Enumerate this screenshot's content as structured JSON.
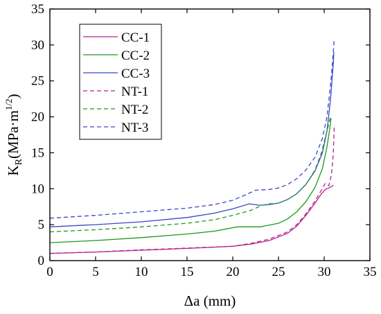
{
  "chart_data": {
    "type": "line",
    "xlabel": "Δa (mm)",
    "ylabel": {
      "main": "K",
      "sub": "R",
      "units": "(MPa·m",
      "sup": "1/2",
      "close": ")"
    },
    "xlim": [
      0,
      35
    ],
    "ylim": [
      0,
      35
    ],
    "xticks": [
      0,
      5,
      10,
      15,
      20,
      25,
      30,
      35
    ],
    "yticks": [
      0,
      5,
      10,
      15,
      20,
      25,
      30,
      35
    ],
    "grid": false,
    "legend_placement": "top-left",
    "series": [
      {
        "name": "CC-1",
        "color": "#b0238f",
        "dash": "solid",
        "points": [
          [
            0,
            1.0
          ],
          [
            5,
            1.2
          ],
          [
            10,
            1.45
          ],
          [
            15,
            1.7
          ],
          [
            20,
            2.0
          ],
          [
            22,
            2.3
          ],
          [
            24,
            2.8
          ],
          [
            26,
            3.8
          ],
          [
            27,
            4.8
          ],
          [
            28,
            6.3
          ],
          [
            29,
            8.0
          ],
          [
            29.7,
            9.3
          ],
          [
            30.2,
            10.0
          ],
          [
            30.5,
            10.1
          ],
          [
            30.8,
            10.3
          ],
          [
            31.0,
            10.5
          ]
        ]
      },
      {
        "name": "CC-2",
        "color": "#1a9a1a",
        "dash": "solid",
        "points": [
          [
            0,
            2.5
          ],
          [
            5,
            2.8
          ],
          [
            10,
            3.2
          ],
          [
            15,
            3.7
          ],
          [
            18,
            4.1
          ],
          [
            20.5,
            4.7
          ],
          [
            21.5,
            4.7
          ],
          [
            23,
            4.7
          ],
          [
            25,
            5.2
          ],
          [
            26,
            5.8
          ],
          [
            27,
            6.8
          ],
          [
            28,
            8.2
          ],
          [
            29,
            10.2
          ],
          [
            29.8,
            12.8
          ],
          [
            30.3,
            15.8
          ],
          [
            30.6,
            18.3
          ],
          [
            30.75,
            19.8
          ]
        ]
      },
      {
        "name": "CC-3",
        "color": "#3a46c8",
        "dash": "solid",
        "points": [
          [
            0,
            4.7
          ],
          [
            5,
            5.0
          ],
          [
            10,
            5.4
          ],
          [
            15,
            6.0
          ],
          [
            18,
            6.6
          ],
          [
            20,
            7.2
          ],
          [
            21.8,
            7.9
          ],
          [
            23,
            7.7
          ],
          [
            24,
            7.8
          ],
          [
            25,
            8.0
          ],
          [
            26,
            8.5
          ],
          [
            27,
            9.3
          ],
          [
            28,
            10.6
          ],
          [
            29,
            12.5
          ],
          [
            29.8,
            15.0
          ],
          [
            30.3,
            18.0
          ],
          [
            30.7,
            22.5
          ],
          [
            31.0,
            27.5
          ],
          [
            31.05,
            29.0
          ]
        ]
      },
      {
        "name": "NT-1",
        "color": "#b0238f",
        "dash": "dashed",
        "points": [
          [
            0,
            1.0
          ],
          [
            5,
            1.2
          ],
          [
            10,
            1.5
          ],
          [
            15,
            1.75
          ],
          [
            20,
            2.0
          ],
          [
            22,
            2.4
          ],
          [
            24,
            3.0
          ],
          [
            26,
            4.0
          ],
          [
            27,
            5.0
          ],
          [
            28,
            6.5
          ],
          [
            29,
            8.3
          ],
          [
            29.7,
            9.8
          ],
          [
            30.1,
            10.7
          ],
          [
            30.5,
            10.4
          ],
          [
            30.8,
            12.0
          ],
          [
            31.0,
            15.0
          ],
          [
            31.1,
            18.6
          ]
        ]
      },
      {
        "name": "NT-2",
        "color": "#1a9a1a",
        "dash": "dashed",
        "points": [
          [
            0,
            4.0
          ],
          [
            5,
            4.3
          ],
          [
            10,
            4.7
          ],
          [
            15,
            5.2
          ],
          [
            18,
            5.7
          ],
          [
            20,
            6.3
          ],
          [
            22,
            7.0
          ],
          [
            23.2,
            7.7
          ],
          [
            24,
            7.9
          ],
          [
            25,
            8.0
          ],
          [
            26,
            8.5
          ],
          [
            27,
            9.3
          ],
          [
            28,
            10.6
          ],
          [
            29,
            12.6
          ],
          [
            29.7,
            15.0
          ],
          [
            30.2,
            17.5
          ],
          [
            30.55,
            19.3
          ],
          [
            30.7,
            20.0
          ]
        ]
      },
      {
        "name": "NT-3",
        "color": "#3a46c8",
        "dash": "dashed",
        "points": [
          [
            0,
            5.9
          ],
          [
            5,
            6.3
          ],
          [
            10,
            6.8
          ],
          [
            15,
            7.3
          ],
          [
            18,
            7.8
          ],
          [
            20,
            8.4
          ],
          [
            21.5,
            9.2
          ],
          [
            22.5,
            9.8
          ],
          [
            24,
            9.9
          ],
          [
            25,
            10.1
          ],
          [
            26,
            10.6
          ],
          [
            27,
            11.4
          ],
          [
            28,
            12.6
          ],
          [
            29,
            14.4
          ],
          [
            29.8,
            17.0
          ],
          [
            30.3,
            20.0
          ],
          [
            30.7,
            24.5
          ],
          [
            31.0,
            29.0
          ],
          [
            31.1,
            30.9
          ]
        ]
      }
    ]
  }
}
